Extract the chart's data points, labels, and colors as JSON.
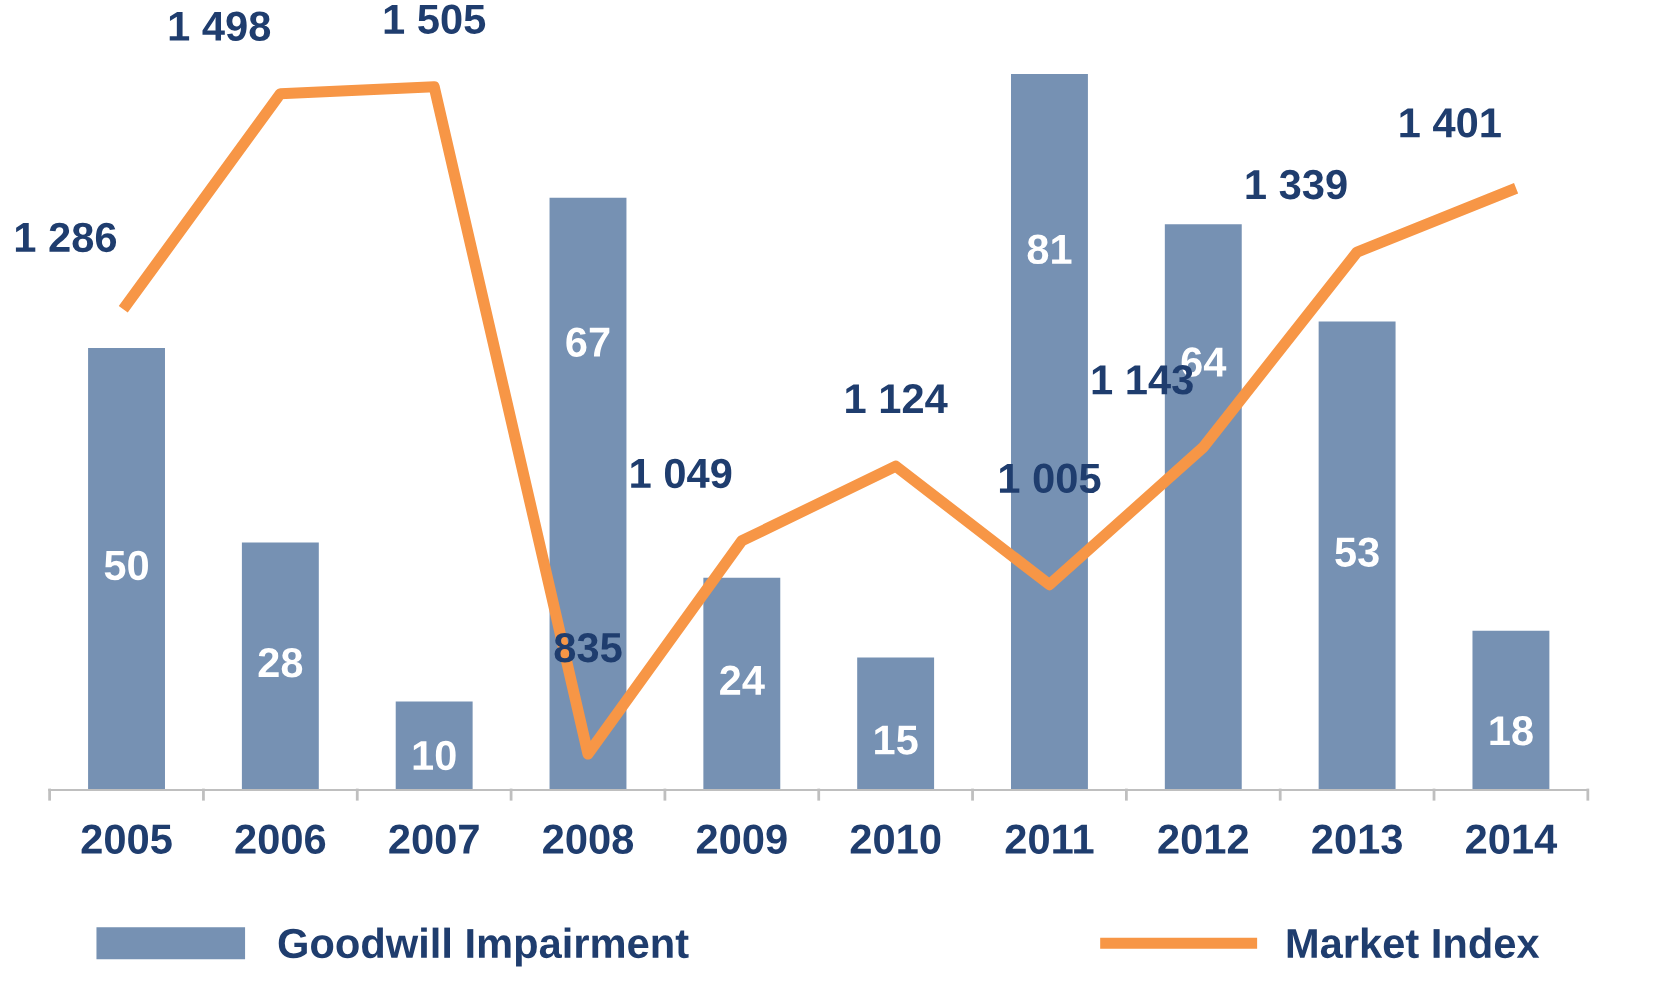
{
  "chart_data": {
    "type": "bar",
    "categories": [
      "2005",
      "2006",
      "2007",
      "2008",
      "2009",
      "2010",
      "2011",
      "2012",
      "2013",
      "2014"
    ],
    "series": [
      {
        "name": "Goodwill Impairment",
        "color": "#7691b3",
        "values": [
          50,
          28,
          10,
          67,
          24,
          15,
          81,
          64,
          53,
          18
        ]
      },
      {
        "name": "Market Index",
        "type": "line",
        "axis": "y2",
        "color": "#f79646",
        "marker": "none",
        "values": [
          1286,
          1498,
          1505,
          835,
          1049,
          1124,
          1005,
          1143,
          1339,
          1401
        ]
      }
    ],
    "data_labels": true,
    "legend": "bottom",
    "grid": false,
    "tick_labels": "x"
  }
}
